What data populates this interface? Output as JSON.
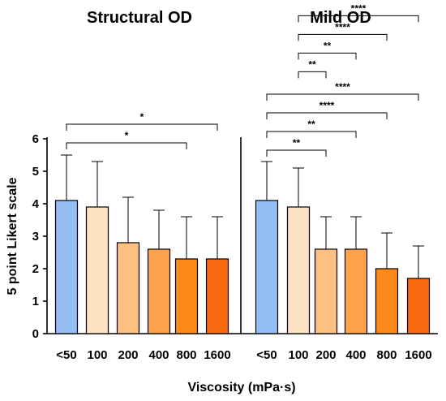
{
  "chart_data": {
    "type": "bar",
    "ylabel": "5 point Likert scale",
    "xlabel": "Viscosity (mPa·s)",
    "ylim": [
      0,
      6
    ],
    "yticks": [
      "0",
      "1",
      "2",
      "3",
      "4",
      "5",
      "6"
    ],
    "grid": false,
    "bar_colors": [
      "#94bdf2",
      "#fde2c4",
      "#fdbf82",
      "#fca24c",
      "#fb8a1a",
      "#f86a10"
    ],
    "panels": [
      {
        "title": "Structural OD",
        "categories": [
          "<50",
          "100",
          "200",
          "400",
          "800",
          "1600"
        ],
        "values": [
          4.1,
          3.9,
          2.8,
          2.6,
          2.3,
          2.3
        ],
        "error_upper": [
          5.5,
          5.3,
          4.2,
          3.8,
          3.6,
          3.6
        ],
        "significance": [
          {
            "from": "<50",
            "to": "800",
            "label": "*"
          },
          {
            "from": "<50",
            "to": "1600",
            "label": "*"
          }
        ]
      },
      {
        "title": "Mild OD",
        "categories": [
          "<50",
          "100",
          "200",
          "400",
          "800",
          "1600"
        ],
        "values": [
          4.1,
          3.9,
          2.6,
          2.6,
          2.0,
          1.7
        ],
        "error_upper": [
          5.3,
          5.1,
          3.6,
          3.6,
          3.1,
          2.7
        ],
        "significance": [
          {
            "from": "<50",
            "to": "200",
            "label": "**"
          },
          {
            "from": "<50",
            "to": "400",
            "label": "**"
          },
          {
            "from": "<50",
            "to": "800",
            "label": "****"
          },
          {
            "from": "<50",
            "to": "1600",
            "label": "****"
          },
          {
            "from": "100",
            "to": "200",
            "label": "**"
          },
          {
            "from": "100",
            "to": "400",
            "label": "**"
          },
          {
            "from": "100",
            "to": "800",
            "label": "****"
          },
          {
            "from": "100",
            "to": "1600",
            "label": "****"
          }
        ]
      }
    ]
  }
}
